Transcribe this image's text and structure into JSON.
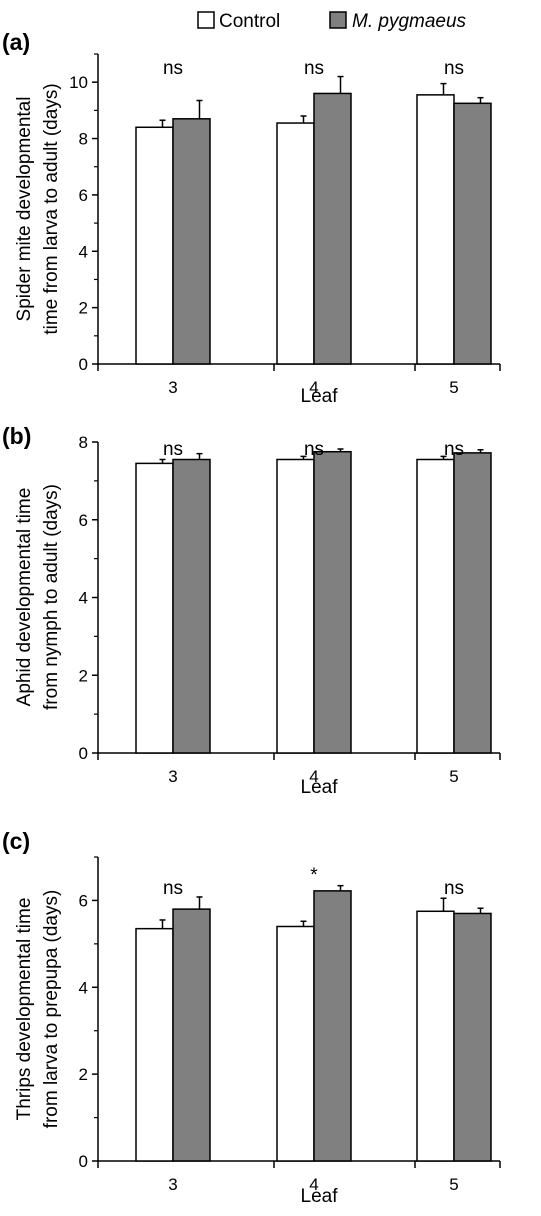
{
  "legend": {
    "items": [
      {
        "label": "Control",
        "color": "#ffffff",
        "italic": false
      },
      {
        "label": "M. pygmaeus",
        "color": "#808080",
        "italic": true
      }
    ]
  },
  "colors": {
    "control": "#ffffff",
    "treatment": "#808080",
    "stroke": "#000000"
  },
  "chart_data": [
    {
      "type": "bar",
      "panel_label": "(a)",
      "categories": [
        "3",
        "4",
        "5"
      ],
      "xlabel": "Leaf",
      "ylabel_lines": [
        "Spider mite developmental",
        "time from larva to adult (days)"
      ],
      "ylim": [
        0,
        11
      ],
      "yticks": [
        0,
        2,
        4,
        6,
        8,
        10
      ],
      "series": [
        {
          "name": "Control",
          "values": [
            8.4,
            8.55,
            9.55
          ],
          "errors": [
            0.25,
            0.25,
            0.4
          ]
        },
        {
          "name": "M. pygmaeus",
          "values": [
            8.7,
            9.6,
            9.25
          ],
          "errors": [
            0.65,
            0.6,
            0.2
          ]
        }
      ],
      "significance": [
        "ns",
        "ns",
        "ns"
      ]
    },
    {
      "type": "bar",
      "panel_label": "(b)",
      "categories": [
        "3",
        "4",
        "5"
      ],
      "xlabel": "Leaf",
      "ylabel_lines": [
        "Aphid developmental time",
        "from nymph to adult (days)"
      ],
      "ylim": [
        0,
        8
      ],
      "yticks": [
        0,
        2,
        4,
        6,
        8
      ],
      "series": [
        {
          "name": "Control",
          "values": [
            7.45,
            7.55,
            7.55
          ],
          "errors": [
            0.1,
            0.08,
            0.08
          ]
        },
        {
          "name": "M. pygmaeus",
          "values": [
            7.55,
            7.75,
            7.72
          ],
          "errors": [
            0.15,
            0.07,
            0.08
          ]
        }
      ],
      "significance": [
        "ns",
        "ns",
        "ns"
      ]
    },
    {
      "type": "bar",
      "panel_label": "(c)",
      "categories": [
        "3",
        "4",
        "5"
      ],
      "xlabel": "Leaf",
      "ylabel_lines": [
        "Thrips developmental time",
        "from larva to prepupa (days)"
      ],
      "ylim": [
        0,
        7
      ],
      "yticks": [
        0,
        2,
        4,
        6
      ],
      "series": [
        {
          "name": "Control",
          "values": [
            5.35,
            5.4,
            5.75
          ],
          "errors": [
            0.2,
            0.12,
            0.3
          ]
        },
        {
          "name": "M. pygmaeus",
          "values": [
            5.8,
            6.22,
            5.7
          ],
          "errors": [
            0.28,
            0.12,
            0.12
          ]
        }
      ],
      "significance": [
        "ns",
        "*",
        "ns"
      ]
    }
  ]
}
